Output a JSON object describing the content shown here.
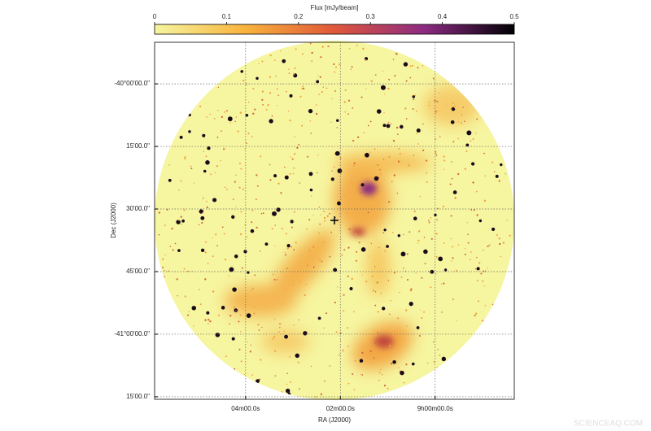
{
  "chart_data": {
    "type": "image",
    "colorbar_label": "Flux [mJy/beam]",
    "clim": [
      0,
      0.5
    ],
    "cticks": [
      0,
      0.1,
      0.2,
      0.3,
      0.4,
      0.5
    ],
    "colors": [
      "#f6f5a0",
      "#f8b43c",
      "#e0573a",
      "#8c2a82",
      "#000004"
    ],
    "xlabel": "RA (J2000)",
    "ylabel": "Dec (J2000)",
    "xlim": [
      545.92,
      538.33
    ],
    "xticks": [
      {
        "value": 544,
        "label": "04m00.0s"
      },
      {
        "value": 542,
        "label": "02m00.0s"
      },
      {
        "value": 540,
        "label": "9h00m00.0s"
      }
    ],
    "ylim": [
      -41.26,
      -39.834
    ],
    "yticks": [
      {
        "value": -40,
        "label": "-40°00'00.0\""
      },
      {
        "value": -40.25,
        "label": "15'00.0\""
      },
      {
        "value": -40.5,
        "label": "30'00.0\""
      },
      {
        "value": -40.75,
        "label": "45'00.0\""
      },
      {
        "value": -41,
        "label": "-41°00'00.0\""
      },
      {
        "value": -41.25,
        "label": "15'00.0\""
      }
    ],
    "grid": true,
    "watermark": "SCIENCEAQ.COM"
  }
}
